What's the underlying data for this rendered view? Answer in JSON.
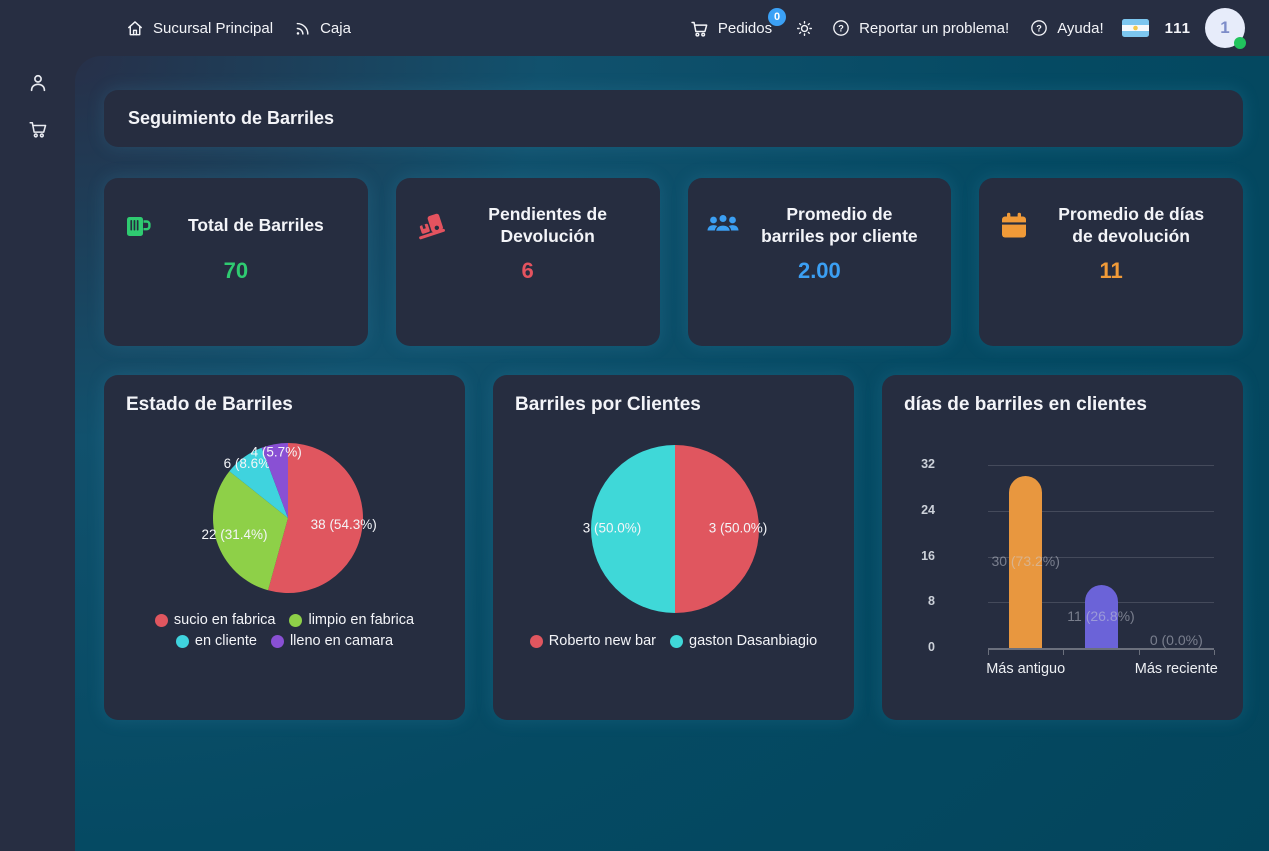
{
  "topbar": {
    "branch": "Sucursal Principal",
    "caja": "Caja",
    "pedidos": "Pedidos",
    "pedidos_badge": "0",
    "report_problem": "Reportar un problema!",
    "help": "Ayuda!",
    "counter": "111",
    "avatar_initial": "1"
  },
  "page": {
    "title": "Seguimiento de Barriles"
  },
  "stats": [
    {
      "icon": "beer-mug-icon",
      "title": "Total de Barriles",
      "value": "70",
      "color": "#2fcb71"
    },
    {
      "icon": "hand-truck-icon",
      "title": "Pendientes de Devolución",
      "value": "6",
      "color": "#e4535f"
    },
    {
      "icon": "users-icon",
      "title": "Promedio de barriles por cliente",
      "value": "2.00",
      "color": "#3b9ff3"
    },
    {
      "icon": "calendar-icon",
      "title": "Promedio de días de devolución",
      "value": "11",
      "color": "#f09a38"
    }
  ],
  "chart_data": [
    {
      "type": "pie",
      "title": "Estado de Barriles",
      "labels": [
        "sucio en fabrica",
        "limpio en fabrica",
        "en cliente",
        "lleno en camara"
      ],
      "values": [
        38,
        22,
        6,
        4
      ],
      "slice_labels": [
        "38 (54.3%)",
        "22 (31.4%)",
        "6 (8.6%)",
        "4 (5.7%)"
      ],
      "colors": [
        "#e0565f",
        "#8ed048",
        "#3fd3de",
        "#8950d4"
      ],
      "legend_position": "bottom"
    },
    {
      "type": "pie",
      "title": "Barriles por Clientes",
      "labels": [
        "Roberto new bar",
        "gaston Dasanbiagio"
      ],
      "values": [
        3,
        3
      ],
      "slice_labels": [
        "3 (50.0%)",
        "3 (50.0%)"
      ],
      "colors": [
        "#e0565f",
        "#3fd8d8"
      ],
      "legend_position": "bottom"
    },
    {
      "type": "bar",
      "title": "días de barriles en clientes",
      "categories": [
        "Más antiguo",
        "",
        "Más reciente"
      ],
      "values": [
        30,
        11,
        0
      ],
      "bar_labels": [
        "30 (73.2%)",
        "11 (26.8%)",
        "0 (0.0%)"
      ],
      "colors": [
        "#e8973f",
        "#6b63d8",
        "#6b63d8"
      ],
      "ylim": [
        0,
        32
      ],
      "yticks": [
        0,
        8,
        16,
        24,
        32
      ],
      "grid": true,
      "xlabel": "",
      "ylabel": ""
    }
  ]
}
